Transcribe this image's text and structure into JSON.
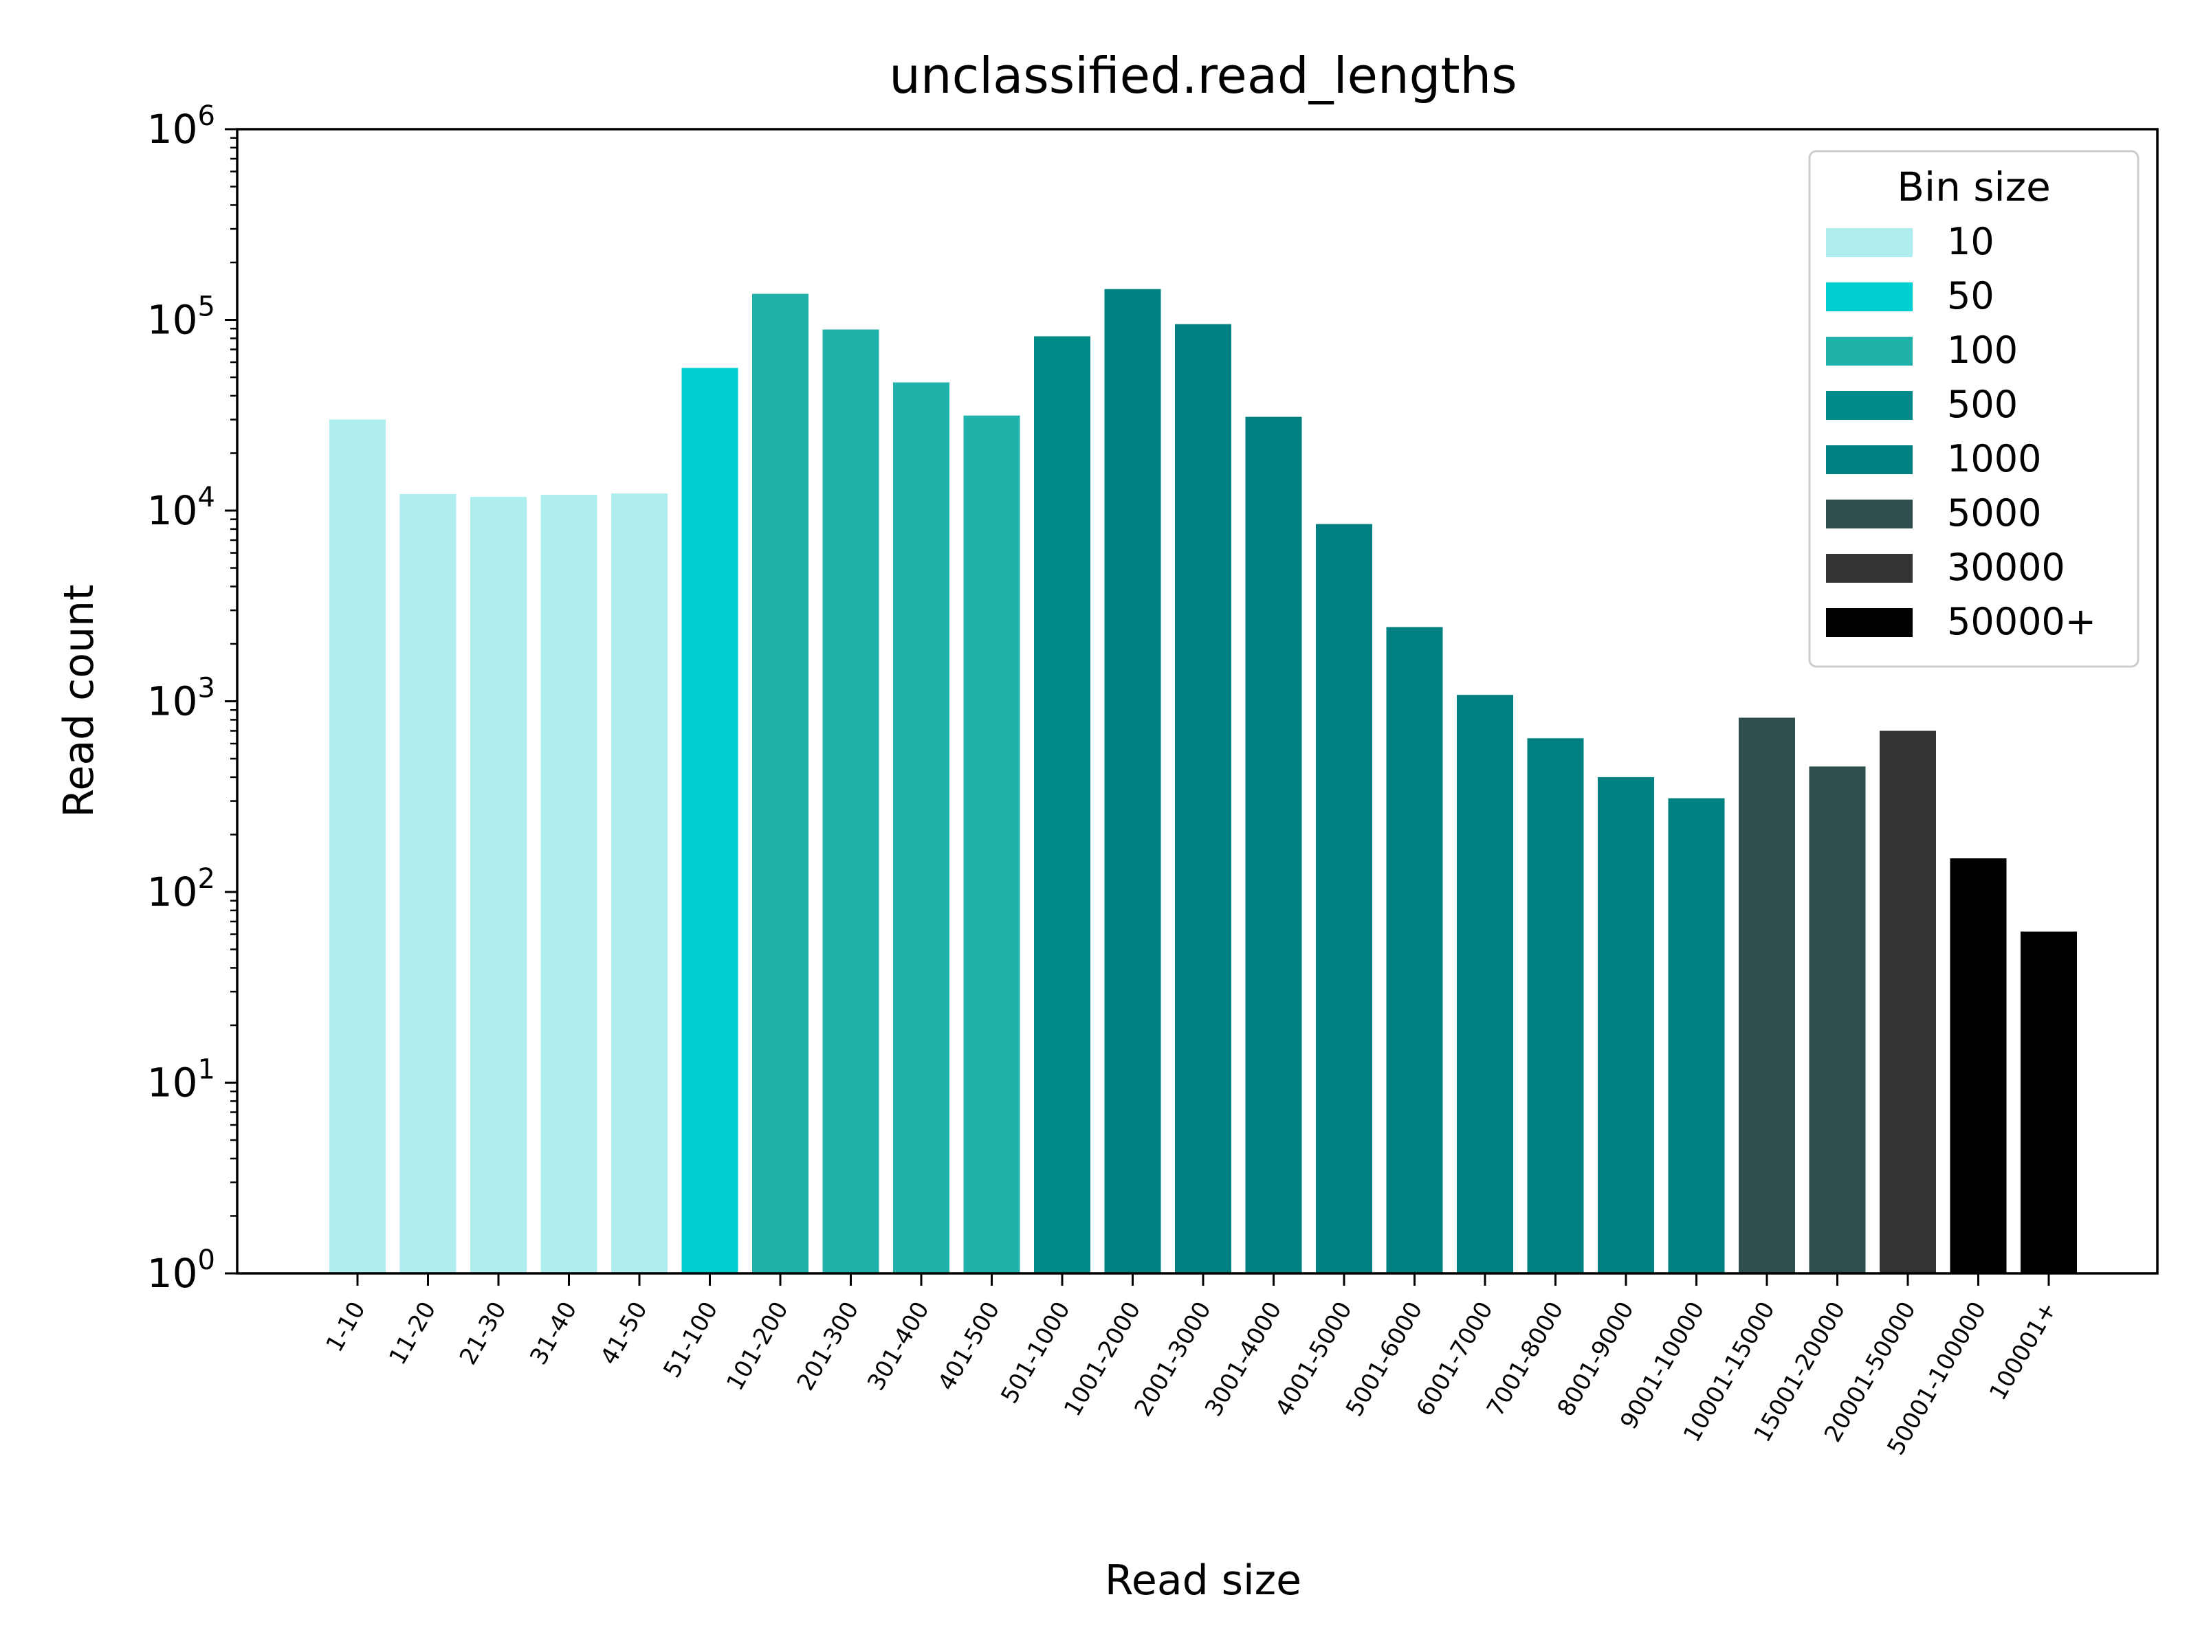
{
  "chart_data": {
    "type": "bar",
    "title": "unclassified.read_lengths",
    "xlabel": "Read size",
    "ylabel": "Read count",
    "yscale": "log",
    "ylim": [
      1,
      1000000
    ],
    "y_ticks": [
      {
        "base": "10",
        "exp": "0",
        "value": 1
      },
      {
        "base": "10",
        "exp": "1",
        "value": 10
      },
      {
        "base": "10",
        "exp": "2",
        "value": 100
      },
      {
        "base": "10",
        "exp": "3",
        "value": 1000
      },
      {
        "base": "10",
        "exp": "4",
        "value": 10000
      },
      {
        "base": "10",
        "exp": "5",
        "value": 100000
      },
      {
        "base": "10",
        "exp": "6",
        "value": 1000000
      }
    ],
    "grid": false,
    "legend": {
      "title": "Bin size",
      "placement": "top-right",
      "entries": [
        {
          "label": "10",
          "color": "#afeeee"
        },
        {
          "label": "50",
          "color": "#00ced1"
        },
        {
          "label": "100",
          "color": "#20b2aa"
        },
        {
          "label": "500",
          "color": "#008b8b"
        },
        {
          "label": "1000",
          "color": "#008080"
        },
        {
          "label": "5000",
          "color": "#2f4f4f"
        },
        {
          "label": "30000",
          "color": "#333333"
        },
        {
          "label": "50000+",
          "color": "#000000"
        }
      ]
    },
    "bars": [
      {
        "category": "1-10",
        "value": 30000,
        "bin": "10"
      },
      {
        "category": "11-20",
        "value": 12200,
        "bin": "10"
      },
      {
        "category": "21-30",
        "value": 11800,
        "bin": "10"
      },
      {
        "category": "31-40",
        "value": 12100,
        "bin": "10"
      },
      {
        "category": "41-50",
        "value": 12300,
        "bin": "10"
      },
      {
        "category": "51-100",
        "value": 56000,
        "bin": "50"
      },
      {
        "category": "101-200",
        "value": 137000,
        "bin": "100"
      },
      {
        "category": "201-300",
        "value": 89000,
        "bin": "100"
      },
      {
        "category": "301-400",
        "value": 47000,
        "bin": "100"
      },
      {
        "category": "401-500",
        "value": 31500,
        "bin": "100"
      },
      {
        "category": "501-1000",
        "value": 82000,
        "bin": "500"
      },
      {
        "category": "1001-2000",
        "value": 145000,
        "bin": "1000"
      },
      {
        "category": "2001-3000",
        "value": 95000,
        "bin": "1000"
      },
      {
        "category": "3001-4000",
        "value": 31000,
        "bin": "1000"
      },
      {
        "category": "4001-5000",
        "value": 8500,
        "bin": "1000"
      },
      {
        "category": "5001-6000",
        "value": 2450,
        "bin": "1000"
      },
      {
        "category": "6001-7000",
        "value": 1080,
        "bin": "1000"
      },
      {
        "category": "7001-8000",
        "value": 640,
        "bin": "1000"
      },
      {
        "category": "8001-9000",
        "value": 400,
        "bin": "1000"
      },
      {
        "category": "9001-10000",
        "value": 310,
        "bin": "1000"
      },
      {
        "category": "10001-15000",
        "value": 820,
        "bin": "5000"
      },
      {
        "category": "15001-20000",
        "value": 455,
        "bin": "5000"
      },
      {
        "category": "20001-50000",
        "value": 700,
        "bin": "30000"
      },
      {
        "category": "50001-100000",
        "value": 150,
        "bin": "50000+"
      },
      {
        "category": "100001+",
        "value": 62,
        "bin": "50000+"
      }
    ]
  }
}
